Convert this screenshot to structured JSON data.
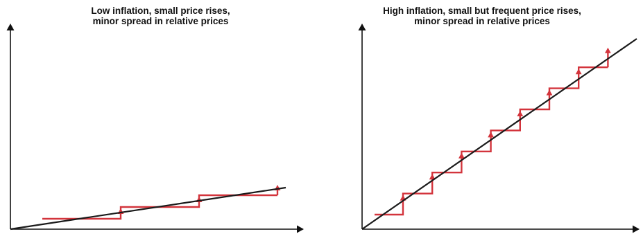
{
  "colors": {
    "axis": "#111111",
    "trend_line": "#1a1a1a",
    "steps": "#d3343c"
  },
  "panels": [
    {
      "title_line1": "Low inflation, small price rises,",
      "title_line2": "minor spread in relative prices",
      "steps": 3
    },
    {
      "title_line1": "High inflation, small but frequent price rises,",
      "title_line2": "minor spread in relative prices",
      "steps": 8
    }
  ]
}
